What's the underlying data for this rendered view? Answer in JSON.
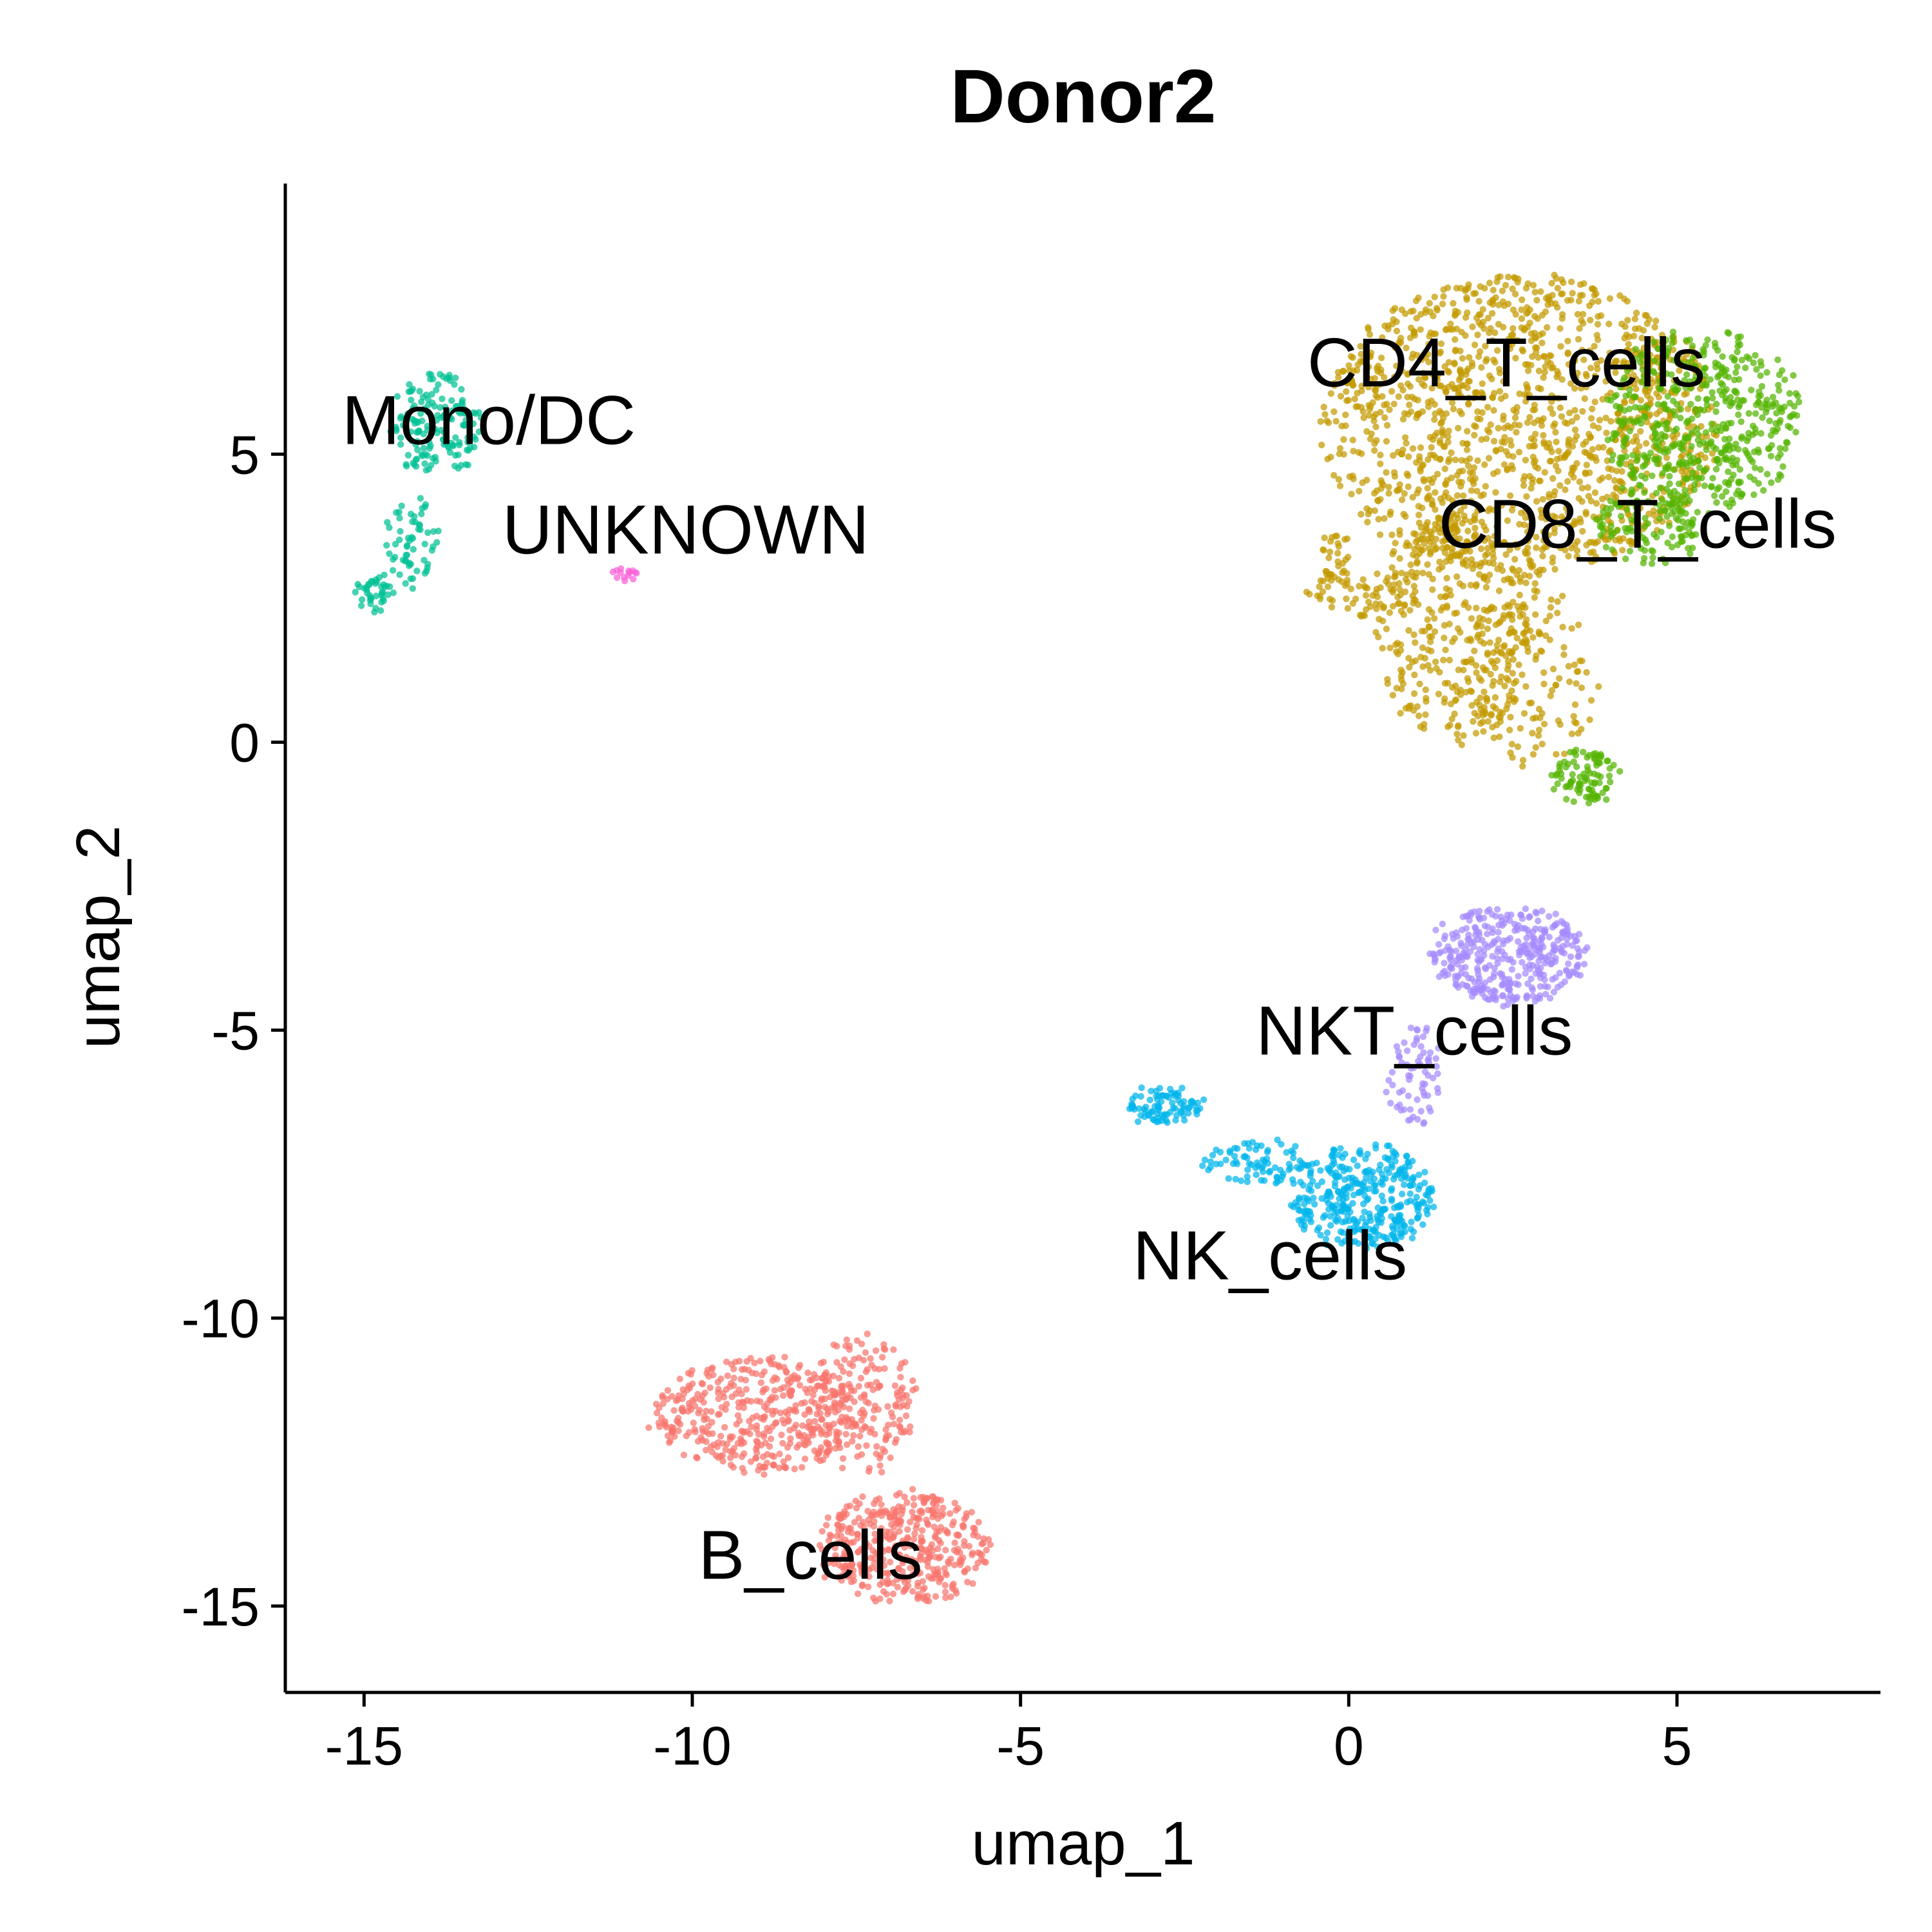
{
  "chart_data": {
    "type": "scatter",
    "title": "Donor2",
    "xlabel": "umap_1",
    "ylabel": "umap_2",
    "xlim": [
      -16.2,
      8.1
    ],
    "ylim": [
      -16.5,
      9.7
    ],
    "xticks": [
      -15,
      -10,
      -5,
      0,
      5
    ],
    "yticks": [
      5,
      0,
      -5,
      -10,
      -15
    ],
    "grid": false,
    "legend": "none",
    "clusters": [
      {
        "name": "CD4_T_cells",
        "color": "#C49A00",
        "label_pos": [
          2.4,
          6.6
        ],
        "blobs": [
          {
            "cx": 2.6,
            "cy": 5.5,
            "rx": 3.0,
            "ry": 2.6,
            "n": 1400
          },
          {
            "cx": 1.6,
            "cy": 2.0,
            "rx": 1.2,
            "ry": 2.0,
            "n": 350
          },
          {
            "cx": 2.8,
            "cy": 1.2,
            "rx": 1.0,
            "ry": 1.6,
            "n": 150
          },
          {
            "cx": 0.2,
            "cy": 2.6,
            "rx": 0.9,
            "ry": 0.4,
            "n": 60
          },
          {
            "cx": -0.2,
            "cy": 3.2,
            "rx": 0.2,
            "ry": 0.5,
            "n": 30
          }
        ]
      },
      {
        "name": "CD8_T_cells",
        "color": "#53B400",
        "label_pos": [
          4.4,
          3.8
        ],
        "blobs": [
          {
            "cx": 5.4,
            "cy": 5.6,
            "rx": 1.5,
            "ry": 1.6,
            "n": 500
          },
          {
            "cx": 4.6,
            "cy": 3.8,
            "rx": 0.8,
            "ry": 0.7,
            "n": 120
          },
          {
            "cx": 3.6,
            "cy": -0.6,
            "rx": 0.5,
            "ry": 0.45,
            "n": 90
          }
        ]
      },
      {
        "name": "NKT_cells",
        "color": "#A58AFF",
        "label_pos": [
          1.0,
          -5.0
        ],
        "blobs": [
          {
            "cx": 2.4,
            "cy": -3.7,
            "rx": 1.2,
            "ry": 0.85,
            "n": 380
          },
          {
            "cx": 1.0,
            "cy": -5.8,
            "rx": 0.4,
            "ry": 0.9,
            "n": 70
          }
        ]
      },
      {
        "name": "NK_cells",
        "color": "#00B6EB",
        "label_pos": [
          -1.2,
          -8.9
        ],
        "blobs": [
          {
            "cx": 0.2,
            "cy": -7.9,
            "rx": 1.1,
            "ry": 0.9,
            "n": 360
          },
          {
            "cx": -1.3,
            "cy": -7.3,
            "rx": 0.9,
            "ry": 0.4,
            "n": 80
          },
          {
            "cx": -2.8,
            "cy": -6.3,
            "rx": 0.55,
            "ry": 0.3,
            "n": 90
          }
        ]
      },
      {
        "name": "B_cells",
        "color": "#F8766D",
        "label_pos": [
          -8.2,
          -14.1
        ],
        "blobs": [
          {
            "cx": -9.0,
            "cy": -11.7,
            "rx": 1.6,
            "ry": 1.0,
            "n": 420
          },
          {
            "cx": -6.8,
            "cy": -14.0,
            "rx": 1.3,
            "ry": 1.0,
            "n": 420
          },
          {
            "cx": -7.4,
            "cy": -11.5,
            "rx": 0.8,
            "ry": 1.2,
            "n": 180
          }
        ]
      },
      {
        "name": "Mono/DC",
        "color": "#00C094",
        "label_pos": [
          -13.1,
          5.6
        ],
        "blobs": [
          {
            "cx": -13.9,
            "cy": 5.5,
            "rx": 0.7,
            "ry": 0.9,
            "n": 160
          },
          {
            "cx": -14.3,
            "cy": 3.5,
            "rx": 0.4,
            "ry": 0.8,
            "n": 60
          },
          {
            "cx": -14.8,
            "cy": 2.6,
            "rx": 0.3,
            "ry": 0.3,
            "n": 40
          }
        ]
      },
      {
        "name": "UNKNOWN",
        "color": "#FB61D7",
        "label_pos": [
          -10.1,
          3.7
        ],
        "blobs": [
          {
            "cx": -11.0,
            "cy": 2.9,
            "rx": 0.18,
            "ry": 0.1,
            "n": 14
          }
        ]
      }
    ]
  }
}
